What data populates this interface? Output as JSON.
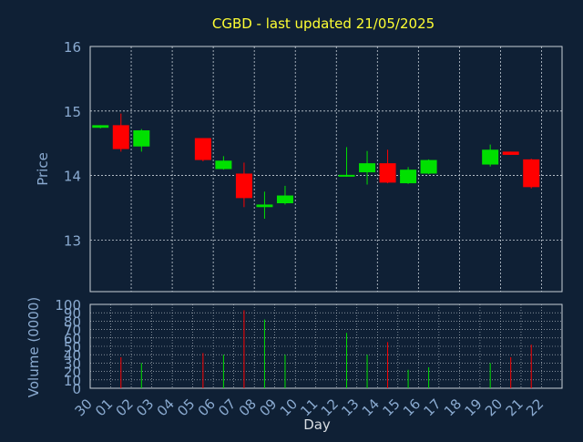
{
  "colors": {
    "background": "#0f2035",
    "title": "#ffff33",
    "axis_text": "#8aaad0",
    "frame": "#c8d0d8",
    "grid": "#c8d0d8",
    "up": "#00e000",
    "down": "#ff0000"
  },
  "chart_data": [
    {
      "type": "candlestick",
      "title": "CGBD - last updated 21/05/2025",
      "ylabel": "Price",
      "ylim": [
        12.2,
        16.0
      ],
      "yticks": [
        13,
        14,
        15,
        16
      ],
      "grid": true,
      "x_categories": [
        "30",
        "01",
        "02",
        "03",
        "04",
        "05",
        "06",
        "07",
        "08",
        "09",
        "10",
        "11",
        "12",
        "13",
        "14",
        "15",
        "16",
        "17",
        "18",
        "19",
        "20",
        "21",
        "22"
      ],
      "candles": [
        {
          "day": "30",
          "open": 14.74,
          "high": 14.78,
          "low": 14.73,
          "close": 14.78
        },
        {
          "day": "01",
          "open": 14.78,
          "high": 14.96,
          "low": 14.37,
          "close": 14.41
        },
        {
          "day": "02",
          "open": 14.45,
          "high": 14.72,
          "low": 14.37,
          "close": 14.7
        },
        {
          "day": "05",
          "open": 14.58,
          "high": 14.58,
          "low": 14.22,
          "close": 14.24
        },
        {
          "day": "06",
          "open": 14.1,
          "high": 14.3,
          "low": 14.09,
          "close": 14.23
        },
        {
          "day": "07",
          "open": 14.03,
          "high": 14.2,
          "low": 13.51,
          "close": 13.65
        },
        {
          "day": "08",
          "open": 13.51,
          "high": 13.75,
          "low": 13.33,
          "close": 13.55
        },
        {
          "day": "09",
          "open": 13.57,
          "high": 13.84,
          "low": 13.55,
          "close": 13.69
        },
        {
          "day": "12",
          "open": 14.0,
          "high": 14.44,
          "low": 13.98,
          "close": 14.01
        },
        {
          "day": "13",
          "open": 14.05,
          "high": 14.38,
          "low": 13.86,
          "close": 14.19
        },
        {
          "day": "14",
          "open": 14.19,
          "high": 14.4,
          "low": 13.88,
          "close": 13.89
        },
        {
          "day": "15",
          "open": 13.88,
          "high": 14.13,
          "low": 13.87,
          "close": 14.09
        },
        {
          "day": "16",
          "open": 14.03,
          "high": 14.25,
          "low": 14.02,
          "close": 14.24
        },
        {
          "day": "19",
          "open": 14.17,
          "high": 14.48,
          "low": 14.14,
          "close": 14.4
        },
        {
          "day": "20",
          "open": 14.37,
          "high": 14.37,
          "low": 14.32,
          "close": 14.32
        },
        {
          "day": "21",
          "open": 14.25,
          "high": 14.26,
          "low": 13.8,
          "close": 13.82
        }
      ]
    },
    {
      "type": "bar",
      "ylabel": "Volume (0000)",
      "xlabel": "Day",
      "ylim": [
        0,
        100
      ],
      "yticks": [
        0,
        10,
        20,
        30,
        40,
        50,
        60,
        70,
        80,
        90,
        100
      ],
      "categories": [
        "30",
        "01",
        "02",
        "03",
        "04",
        "05",
        "06",
        "07",
        "08",
        "09",
        "10",
        "11",
        "12",
        "13",
        "14",
        "15",
        "16",
        "17",
        "18",
        "19",
        "20",
        "21",
        "22"
      ],
      "bars": [
        {
          "day": "01",
          "value": 37,
          "direction": "down"
        },
        {
          "day": "02",
          "value": 30,
          "direction": "up"
        },
        {
          "day": "05",
          "value": 42,
          "direction": "down"
        },
        {
          "day": "06",
          "value": 40,
          "direction": "up"
        },
        {
          "day": "07",
          "value": 93,
          "direction": "down"
        },
        {
          "day": "08",
          "value": 82,
          "direction": "up"
        },
        {
          "day": "09",
          "value": 40,
          "direction": "up"
        },
        {
          "day": "12",
          "value": 66,
          "direction": "up"
        },
        {
          "day": "13",
          "value": 40,
          "direction": "up"
        },
        {
          "day": "14",
          "value": 55,
          "direction": "down"
        },
        {
          "day": "15",
          "value": 22,
          "direction": "up"
        },
        {
          "day": "16",
          "value": 25,
          "direction": "up"
        },
        {
          "day": "19",
          "value": 30,
          "direction": "up"
        },
        {
          "day": "20",
          "value": 37,
          "direction": "down"
        },
        {
          "day": "21",
          "value": 52,
          "direction": "down"
        }
      ]
    }
  ]
}
